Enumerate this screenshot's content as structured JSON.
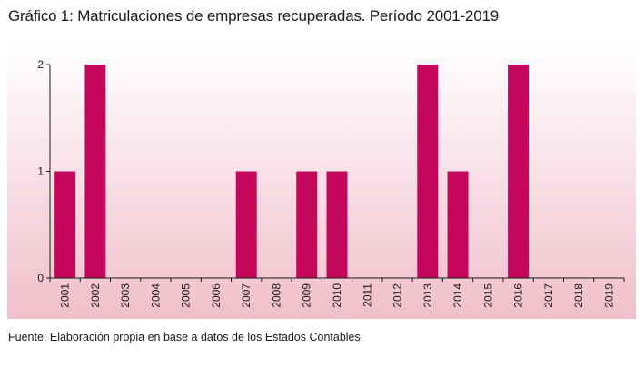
{
  "title": "Gráfico 1: Matriculaciones de empresas recuperadas. Período 2001-2019",
  "source": "Fuente: Elaboración propia en base a datos de los Estados Contables.",
  "colors": {
    "bar": "#c4075b",
    "bg_top": "#ffffff",
    "bg_bottom": "#f0bfcb",
    "axis": "#1a1a1a"
  },
  "chart_data": {
    "type": "bar",
    "title": "Gráfico 1: Matriculaciones de empresas recuperadas. Período 2001-2019",
    "xlabel": "",
    "ylabel": "",
    "categories": [
      "2001",
      "2002",
      "2003",
      "2004",
      "2005",
      "2006",
      "2007",
      "2008",
      "2009",
      "2010",
      "2011",
      "2012",
      "2013",
      "2014",
      "2015",
      "2016",
      "2017",
      "2018",
      "2019"
    ],
    "values": [
      1,
      2,
      0,
      0,
      0,
      0,
      1,
      0,
      1,
      1,
      0,
      0,
      2,
      1,
      0,
      2,
      0,
      0,
      0
    ],
    "ylim": [
      0,
      2
    ],
    "yticks": [
      "0",
      "1",
      "2"
    ],
    "grid": false,
    "legend": "none"
  }
}
